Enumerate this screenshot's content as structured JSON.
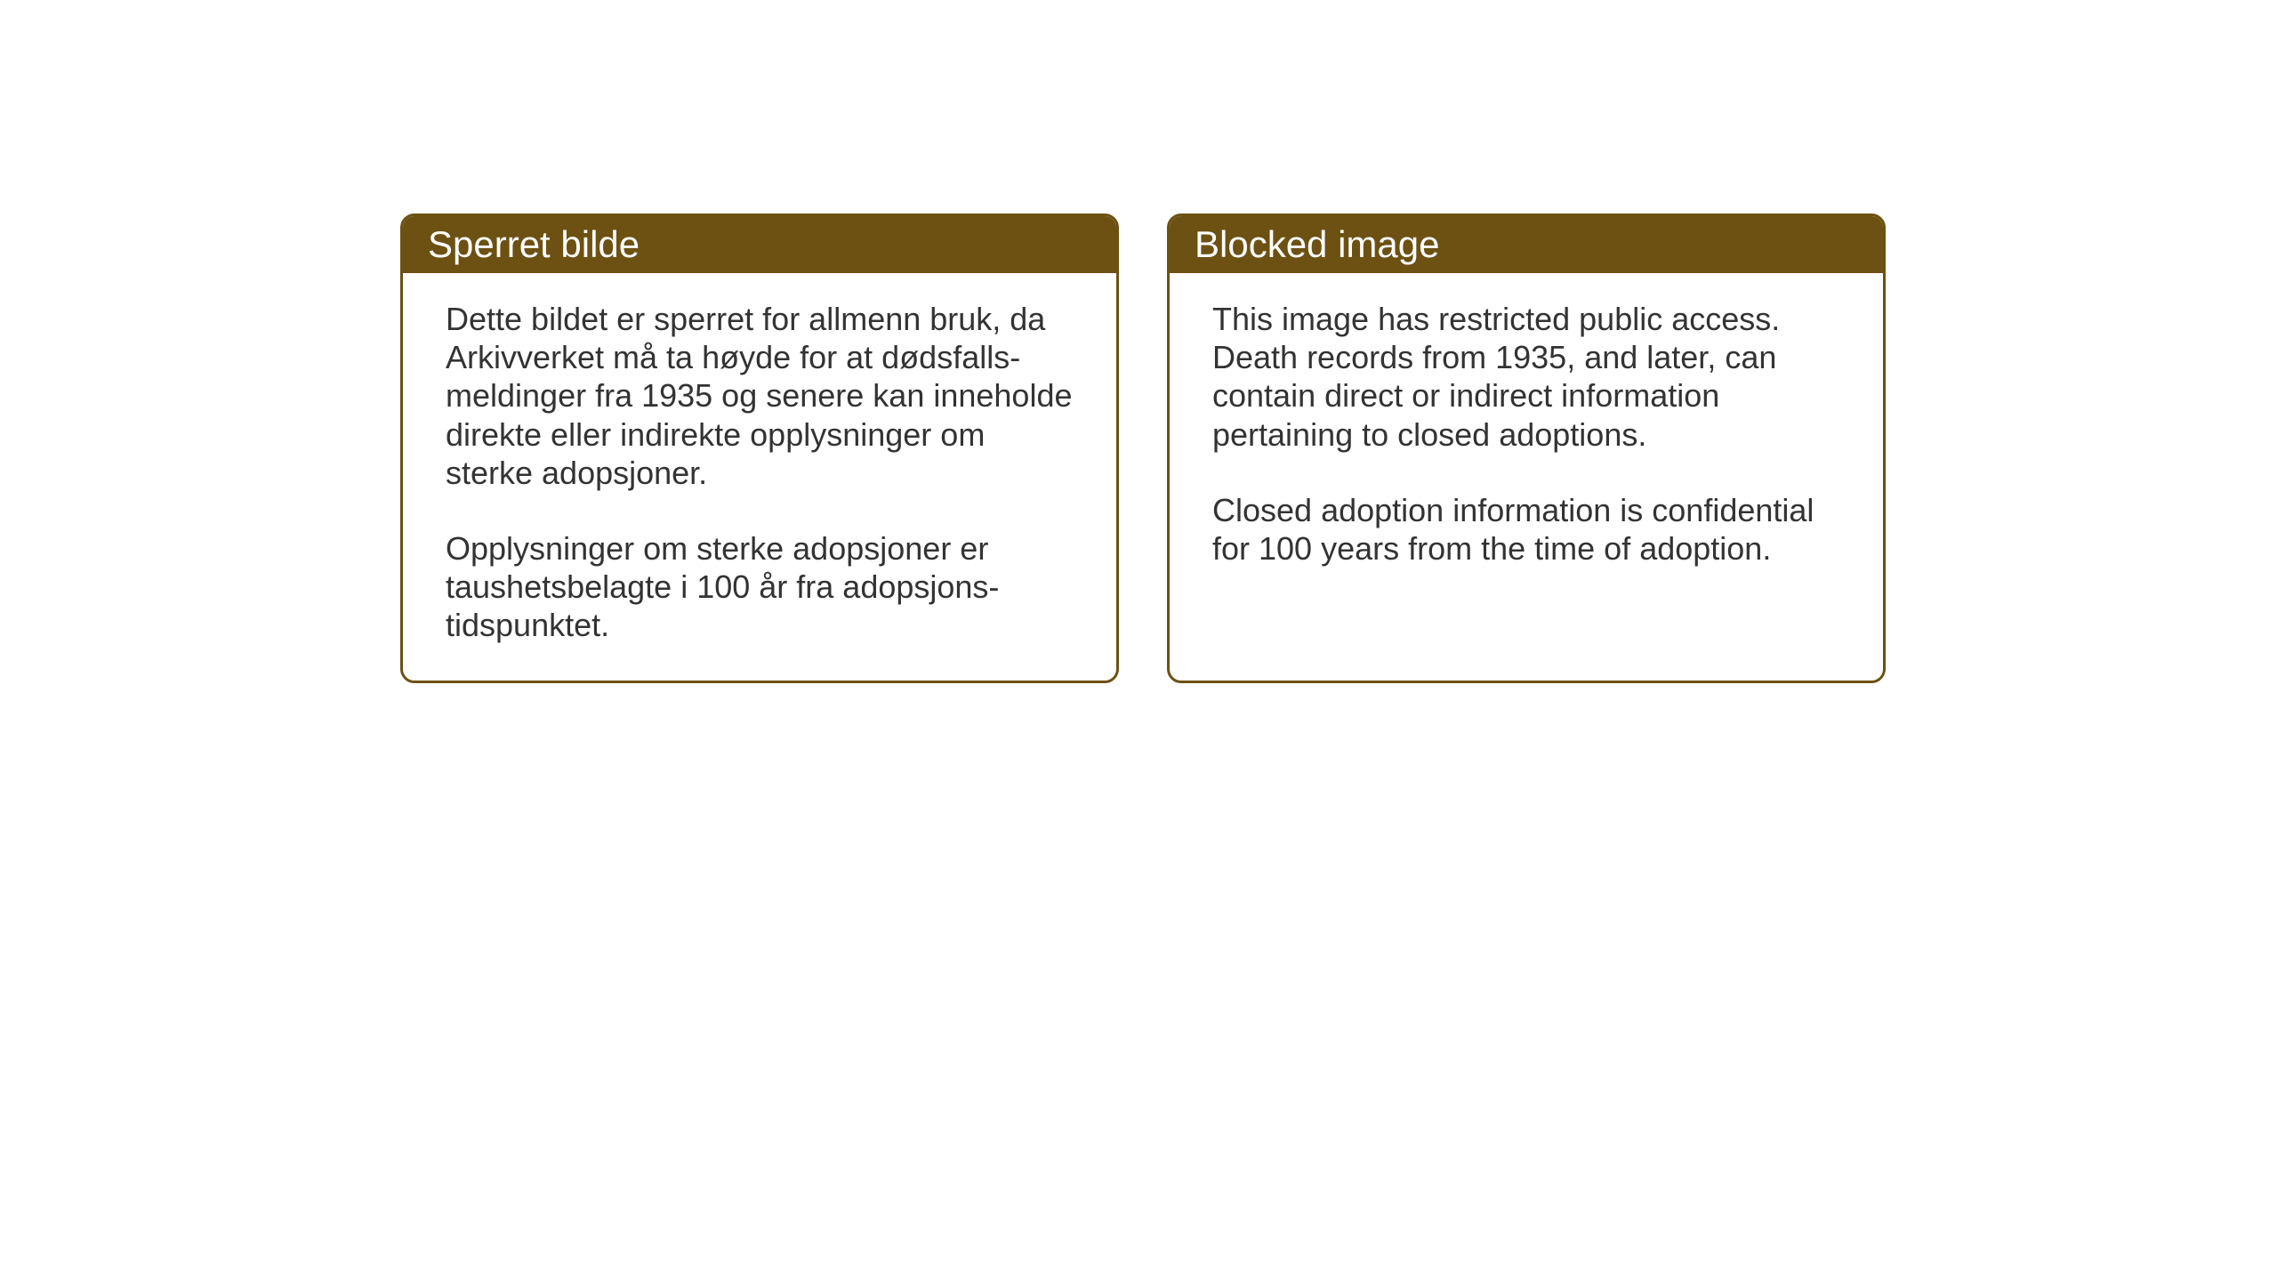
{
  "layout": {
    "background_color": "#ffffff",
    "card_border_color": "#6d5113",
    "card_border_width": 3,
    "card_border_radius": 16,
    "header_bg_color": "#6d5113",
    "header_text_color": "#ffffff",
    "body_text_color": "#333333",
    "header_fontsize": 42,
    "body_fontsize": 36
  },
  "cards": {
    "norwegian": {
      "title": "Sperret bilde",
      "paragraph1": "Dette bildet er sperret for allmenn bruk, da Arkivverket må ta høyde for at dødsfalls-meldinger fra 1935 og senere kan inneholde direkte eller indirekte opplysninger om sterke adopsjoner.",
      "paragraph2": "Opplysninger om sterke adopsjoner er taushetsbelagte i 100 år fra adopsjons-tidspunktet."
    },
    "english": {
      "title": "Blocked image",
      "paragraph1": "This image has restricted public access. Death records from 1935, and later, can contain direct or indirect information pertaining to closed adoptions.",
      "paragraph2": "Closed adoption information is confidential for 100 years from the time of adoption."
    }
  }
}
